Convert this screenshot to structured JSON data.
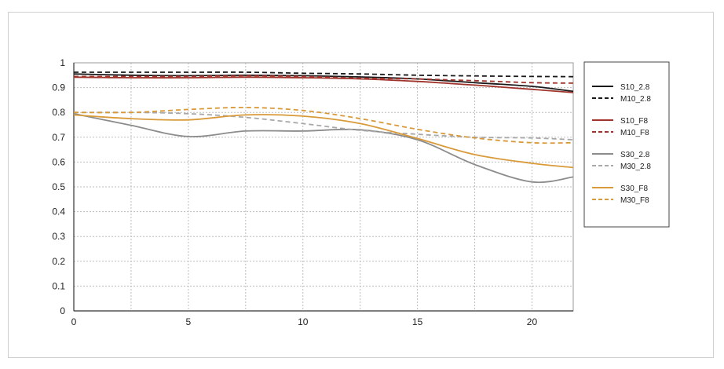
{
  "chart_data": {
    "type": "line",
    "xlim": [
      0,
      21.8
    ],
    "ylim": [
      0,
      1
    ],
    "x_ticks": [
      "0",
      "5",
      "10",
      "15",
      "20"
    ],
    "y_ticks": [
      "0",
      "0.1",
      "0.2",
      "0.3",
      "0.4",
      "0.5",
      "0.6",
      "0.7",
      "0.8",
      "0.9",
      "1"
    ],
    "grid": true,
    "legend_position": "right",
    "x": [
      0,
      2.5,
      5,
      7.5,
      10,
      12.5,
      15,
      17.5,
      20,
      21.8
    ],
    "series": [
      {
        "name": "S10_2.8",
        "color": "#1a1a1a",
        "dashed": false,
        "values": [
          0.955,
          0.95,
          0.948,
          0.95,
          0.948,
          0.943,
          0.935,
          0.92,
          0.905,
          0.885
        ]
      },
      {
        "name": "M10_2.8",
        "color": "#1a1a1a",
        "dashed": true,
        "values": [
          0.962,
          0.962,
          0.962,
          0.962,
          0.958,
          0.955,
          0.95,
          0.947,
          0.945,
          0.944
        ]
      },
      {
        "name": "S10_F8",
        "color": "#a0332b",
        "dashed": false,
        "values": [
          0.942,
          0.94,
          0.94,
          0.942,
          0.94,
          0.935,
          0.925,
          0.91,
          0.893,
          0.88
        ]
      },
      {
        "name": "M10_F8",
        "color": "#a0332b",
        "dashed": true,
        "values": [
          0.945,
          0.945,
          0.945,
          0.948,
          0.945,
          0.938,
          0.935,
          0.928,
          0.92,
          0.918
        ]
      },
      {
        "name": "S30_2.8",
        "color": "#8c8c8c",
        "dashed": false,
        "values": [
          0.795,
          0.748,
          0.703,
          0.725,
          0.725,
          0.73,
          0.69,
          0.59,
          0.52,
          0.54
        ]
      },
      {
        "name": "M30_2.8",
        "color": "#a8a8a8",
        "dashed": true,
        "values": [
          0.8,
          0.8,
          0.795,
          0.78,
          0.755,
          0.728,
          0.712,
          0.7,
          0.697,
          0.69
        ]
      },
      {
        "name": "S30_F8",
        "color": "#d99a3a",
        "dashed": false,
        "values": [
          0.79,
          0.775,
          0.77,
          0.79,
          0.785,
          0.755,
          0.695,
          0.63,
          0.595,
          0.578
        ]
      },
      {
        "name": "M30_F8",
        "color": "#d99a3a",
        "dashed": true,
        "values": [
          0.8,
          0.8,
          0.812,
          0.82,
          0.808,
          0.775,
          0.732,
          0.697,
          0.678,
          0.678
        ]
      }
    ],
    "legend_groups": [
      [
        "S10_2.8",
        "M10_2.8"
      ],
      [
        "S10_F8",
        "M10_F8"
      ],
      [
        "S30_2.8",
        "M30_2.8"
      ],
      [
        "S30_F8",
        "M30_F8"
      ]
    ]
  }
}
